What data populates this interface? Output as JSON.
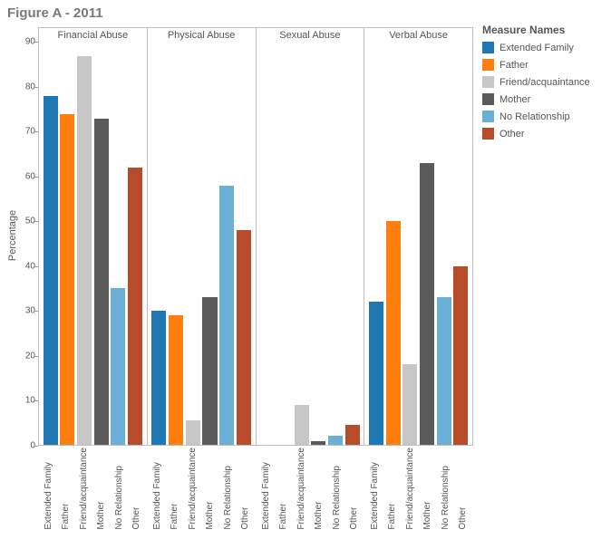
{
  "title": "Figure A - 2011",
  "ylabel": "Percentage",
  "legend_title": "Measure Names",
  "type": "bar",
  "ylim": [
    0,
    90
  ],
  "ytick_step": 10,
  "axis_color": "#bfbfbf",
  "background_color": "#ffffff",
  "text_color": "#555555",
  "categories": [
    "Extended Family",
    "Father",
    "Friend/acquaintance",
    "Mother",
    "No Relationship",
    "Other"
  ],
  "colors": {
    "Extended Family": "#1f77b4",
    "Father": "#ff7f0e",
    "Friend/acquaintance": "#c7c7c7",
    "Mother": "#5a5a5a",
    "No Relationship": "#6baed6",
    "Other": "#b84b2a"
  },
  "panels": [
    {
      "label": "Financial Abuse",
      "values": [
        78,
        74,
        87,
        73,
        35,
        62
      ]
    },
    {
      "label": "Physical Abuse",
      "values": [
        30,
        29,
        5.5,
        33,
        58,
        48
      ]
    },
    {
      "label": "Sexual Abuse",
      "values": [
        0,
        0,
        9,
        0.8,
        2,
        4.5
      ]
    },
    {
      "label": "Verbal Abuse",
      "values": [
        32,
        50,
        18,
        63,
        33,
        40
      ]
    }
  ],
  "bar_width_pct": 14,
  "title_fontsize": 15,
  "label_fontsize": 11,
  "tick_fontsize": 10
}
